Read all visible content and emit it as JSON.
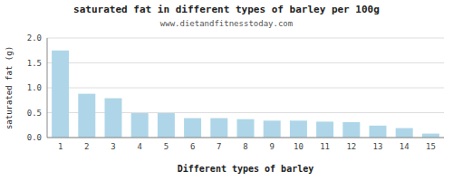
{
  "chart_data": {
    "type": "bar",
    "title": "saturated fat in different types of barley per 100g",
    "subtitle": "www.dietandfitnesstoday.com",
    "xlabel": "Different types of barley",
    "ylabel": "saturated fat (g)",
    "categories": [
      1,
      2,
      3,
      4,
      5,
      6,
      7,
      8,
      9,
      10,
      11,
      12,
      13,
      14,
      15
    ],
    "values": [
      1.75,
      0.88,
      0.79,
      0.49,
      0.49,
      0.39,
      0.39,
      0.37,
      0.34,
      0.34,
      0.32,
      0.31,
      0.24,
      0.19,
      0.08
    ],
    "color": "#aed6e8",
    "ylim": [
      0,
      2.0
    ],
    "yticks": [
      {
        "value": 0,
        "label": "0.0"
      },
      0.5,
      {
        "value": 1,
        "label": "1.0"
      },
      1.5,
      {
        "value": 2,
        "label": "2.0"
      }
    ],
    "grid": true
  }
}
